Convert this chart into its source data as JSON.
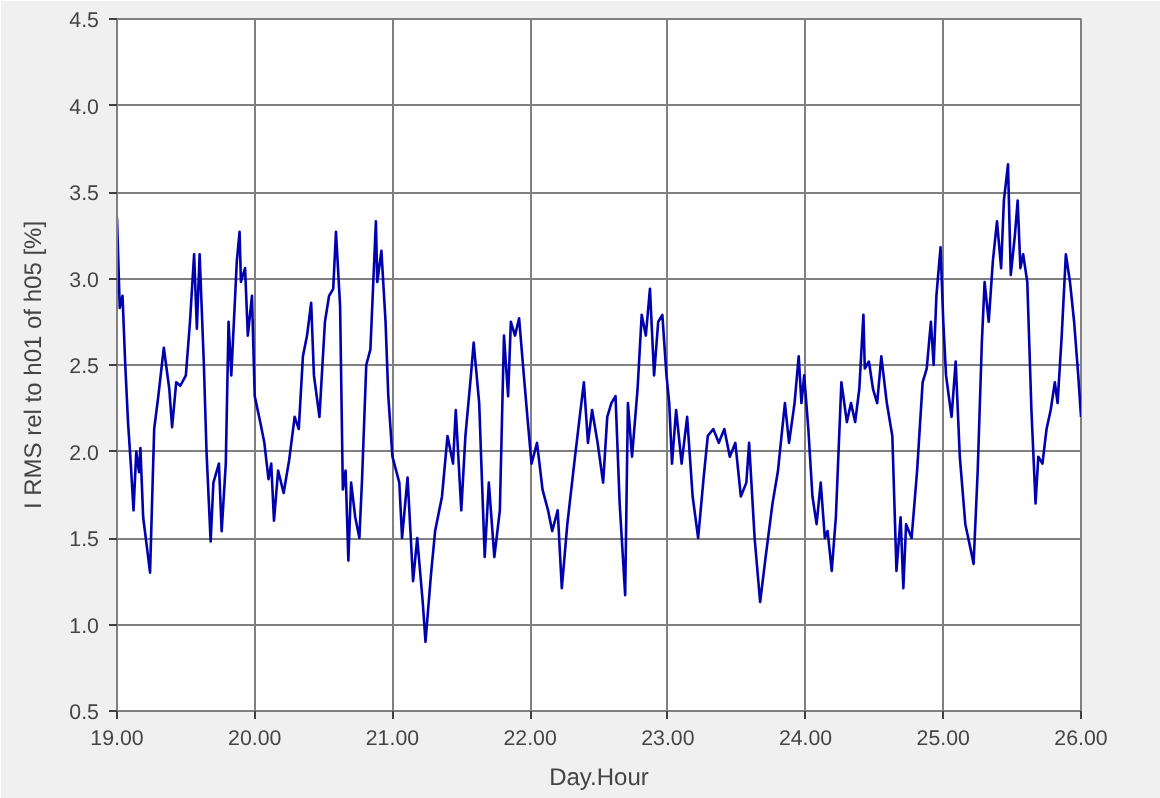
{
  "chart_data": {
    "type": "line",
    "xlabel": "Day.Hour",
    "ylabel": "I RMS rel to h01 of h05 [%]",
    "xlim": [
      19,
      26
    ],
    "ylim": [
      0.5,
      4.5
    ],
    "xticks": [
      {
        "value": 19,
        "label": "19.00"
      },
      {
        "value": 20,
        "label": "20.00"
      },
      {
        "value": 21,
        "label": "21.00"
      },
      {
        "value": 22,
        "label": "22.00"
      },
      {
        "value": 23,
        "label": "23.00"
      },
      {
        "value": 24,
        "label": "24.00"
      },
      {
        "value": 25,
        "label": "25.00"
      },
      {
        "value": 26,
        "label": "26.00"
      }
    ],
    "yticks": [
      0.5,
      {
        "value": 1,
        "label": "1.0"
      },
      1.5,
      {
        "value": 2,
        "label": "2.0"
      },
      2.5,
      {
        "value": 3,
        "label": "3.0"
      },
      3.5,
      {
        "value": 4,
        "label": "4.0"
      },
      4.5
    ],
    "grid": true,
    "marker": "none",
    "line_style": "solid",
    "series": [
      {
        "color": "#0000b0",
        "x": [
          19.0,
          19.02,
          19.04,
          19.06,
          19.08,
          19.1,
          19.12,
          19.14,
          19.16,
          19.17,
          19.19,
          19.22,
          19.24,
          19.27,
          19.3,
          19.34,
          19.38,
          19.4,
          19.43,
          19.46,
          19.5,
          19.53,
          19.56,
          19.58,
          19.6,
          19.63,
          19.65,
          19.68,
          19.7,
          19.74,
          19.76,
          19.79,
          19.81,
          19.83,
          19.87,
          19.89,
          19.9,
          19.93,
          19.95,
          19.98,
          20.0,
          20.04,
          20.07,
          20.1,
          20.12,
          20.14,
          20.17,
          20.21,
          20.25,
          20.29,
          20.32,
          20.35,
          20.38,
          20.41,
          20.43,
          20.47,
          20.51,
          20.54,
          20.57,
          20.59,
          20.62,
          20.64,
          20.66,
          20.68,
          20.7,
          20.73,
          20.76,
          20.78,
          20.81,
          20.84,
          20.88,
          20.89,
          20.92,
          20.95,
          20.97,
          21.0,
          21.05,
          21.07,
          21.11,
          21.15,
          21.18,
          21.22,
          21.24,
          21.28,
          21.31,
          21.36,
          21.4,
          21.44,
          21.46,
          21.5,
          21.53,
          21.57,
          21.59,
          21.63,
          21.67,
          21.7,
          21.74,
          21.78,
          21.81,
          21.84,
          21.86,
          21.89,
          21.92,
          21.95,
          21.98,
          22.01,
          22.05,
          22.09,
          22.13,
          22.16,
          22.2,
          22.23,
          22.27,
          22.32,
          22.36,
          22.39,
          22.42,
          22.45,
          22.49,
          22.53,
          22.56,
          22.59,
          22.62,
          22.65,
          22.69,
          22.71,
          22.74,
          22.78,
          22.81,
          22.84,
          22.87,
          22.9,
          22.93,
          22.96,
          22.99,
          23.01,
          23.03,
          23.06,
          23.1,
          23.14,
          23.18,
          23.22,
          23.26,
          23.29,
          23.33,
          23.37,
          23.41,
          23.45,
          23.49,
          23.53,
          23.57,
          23.59,
          23.63,
          23.67,
          23.71,
          23.76,
          23.8,
          23.81,
          23.85,
          23.88,
          23.92,
          23.95,
          23.97,
          23.99,
          24.02,
          24.05,
          24.08,
          24.11,
          24.14,
          24.16,
          24.19,
          24.22,
          24.26,
          24.3,
          24.33,
          24.36,
          24.39,
          24.42,
          24.43,
          24.46,
          24.49,
          24.52,
          24.55,
          24.59,
          24.63,
          24.66,
          24.69,
          24.71,
          24.73,
          24.77,
          24.81,
          24.85,
          24.88,
          24.91,
          24.93,
          24.95,
          24.98,
          25.0,
          25.02,
          25.06,
          25.09,
          25.12,
          25.16,
          25.2,
          25.22,
          25.25,
          25.28,
          25.3,
          25.33,
          25.36,
          25.39,
          25.42,
          25.44,
          25.47,
          25.49,
          25.52,
          25.54,
          25.56,
          25.58,
          25.61,
          25.64,
          25.67,
          25.69,
          25.72,
          25.75,
          25.78,
          25.81,
          25.83,
          25.86,
          25.89,
          25.92,
          25.95,
          25.98,
          26.0
        ],
        "values": [
          3.35,
          2.83,
          2.9,
          2.5,
          2.17,
          1.93,
          1.66,
          2.0,
          1.88,
          2.02,
          1.62,
          1.43,
          1.3,
          2.13,
          2.32,
          2.6,
          2.36,
          2.14,
          2.4,
          2.38,
          2.44,
          2.75,
          3.14,
          2.71,
          3.14,
          2.52,
          2.0,
          1.48,
          1.82,
          1.93,
          1.54,
          1.93,
          2.75,
          2.44,
          3.1,
          3.27,
          2.98,
          3.06,
          2.67,
          2.9,
          2.32,
          2.17,
          2.05,
          1.84,
          1.93,
          1.6,
          1.89,
          1.76,
          1.95,
          2.2,
          2.13,
          2.55,
          2.67,
          2.86,
          2.44,
          2.2,
          2.75,
          2.9,
          2.94,
          3.27,
          2.84,
          1.78,
          1.89,
          1.37,
          1.82,
          1.62,
          1.5,
          1.85,
          2.5,
          2.59,
          3.33,
          2.98,
          3.16,
          2.75,
          2.32,
          1.97,
          1.82,
          1.5,
          1.85,
          1.25,
          1.5,
          1.13,
          0.9,
          1.29,
          1.54,
          1.74,
          2.09,
          1.93,
          2.24,
          1.66,
          2.09,
          2.44,
          2.63,
          2.28,
          1.39,
          1.82,
          1.39,
          1.66,
          2.67,
          2.32,
          2.75,
          2.67,
          2.77,
          2.48,
          2.2,
          1.93,
          2.05,
          1.78,
          1.66,
          1.54,
          1.66,
          1.21,
          1.58,
          1.93,
          2.2,
          2.4,
          2.05,
          2.24,
          2.05,
          1.82,
          2.2,
          2.28,
          2.32,
          1.7,
          1.17,
          2.28,
          1.97,
          2.36,
          2.79,
          2.67,
          2.94,
          2.44,
          2.75,
          2.79,
          2.44,
          2.28,
          1.93,
          2.24,
          1.93,
          2.2,
          1.74,
          1.5,
          1.85,
          2.09,
          2.13,
          2.05,
          2.13,
          1.97,
          2.05,
          1.74,
          1.82,
          2.05,
          1.5,
          1.13,
          1.39,
          1.7,
          1.89,
          1.97,
          2.28,
          2.05,
          2.28,
          2.55,
          2.28,
          2.44,
          2.13,
          1.74,
          1.58,
          1.82,
          1.5,
          1.54,
          1.31,
          1.62,
          2.4,
          2.17,
          2.28,
          2.17,
          2.36,
          2.79,
          2.48,
          2.52,
          2.36,
          2.28,
          2.55,
          2.28,
          2.09,
          1.31,
          1.62,
          1.21,
          1.58,
          1.5,
          1.89,
          2.4,
          2.48,
          2.75,
          2.5,
          2.9,
          3.18,
          2.75,
          2.44,
          2.2,
          2.52,
          1.97,
          1.58,
          1.43,
          1.35,
          1.89,
          2.63,
          2.98,
          2.75,
          3.1,
          3.33,
          3.06,
          3.45,
          3.66,
          3.02,
          3.25,
          3.45,
          3.06,
          3.14,
          2.98,
          2.24,
          1.7,
          1.97,
          1.93,
          2.13,
          2.24,
          2.4,
          2.28,
          2.67,
          3.14,
          2.98,
          2.75,
          2.44,
          2.2
        ]
      }
    ]
  }
}
